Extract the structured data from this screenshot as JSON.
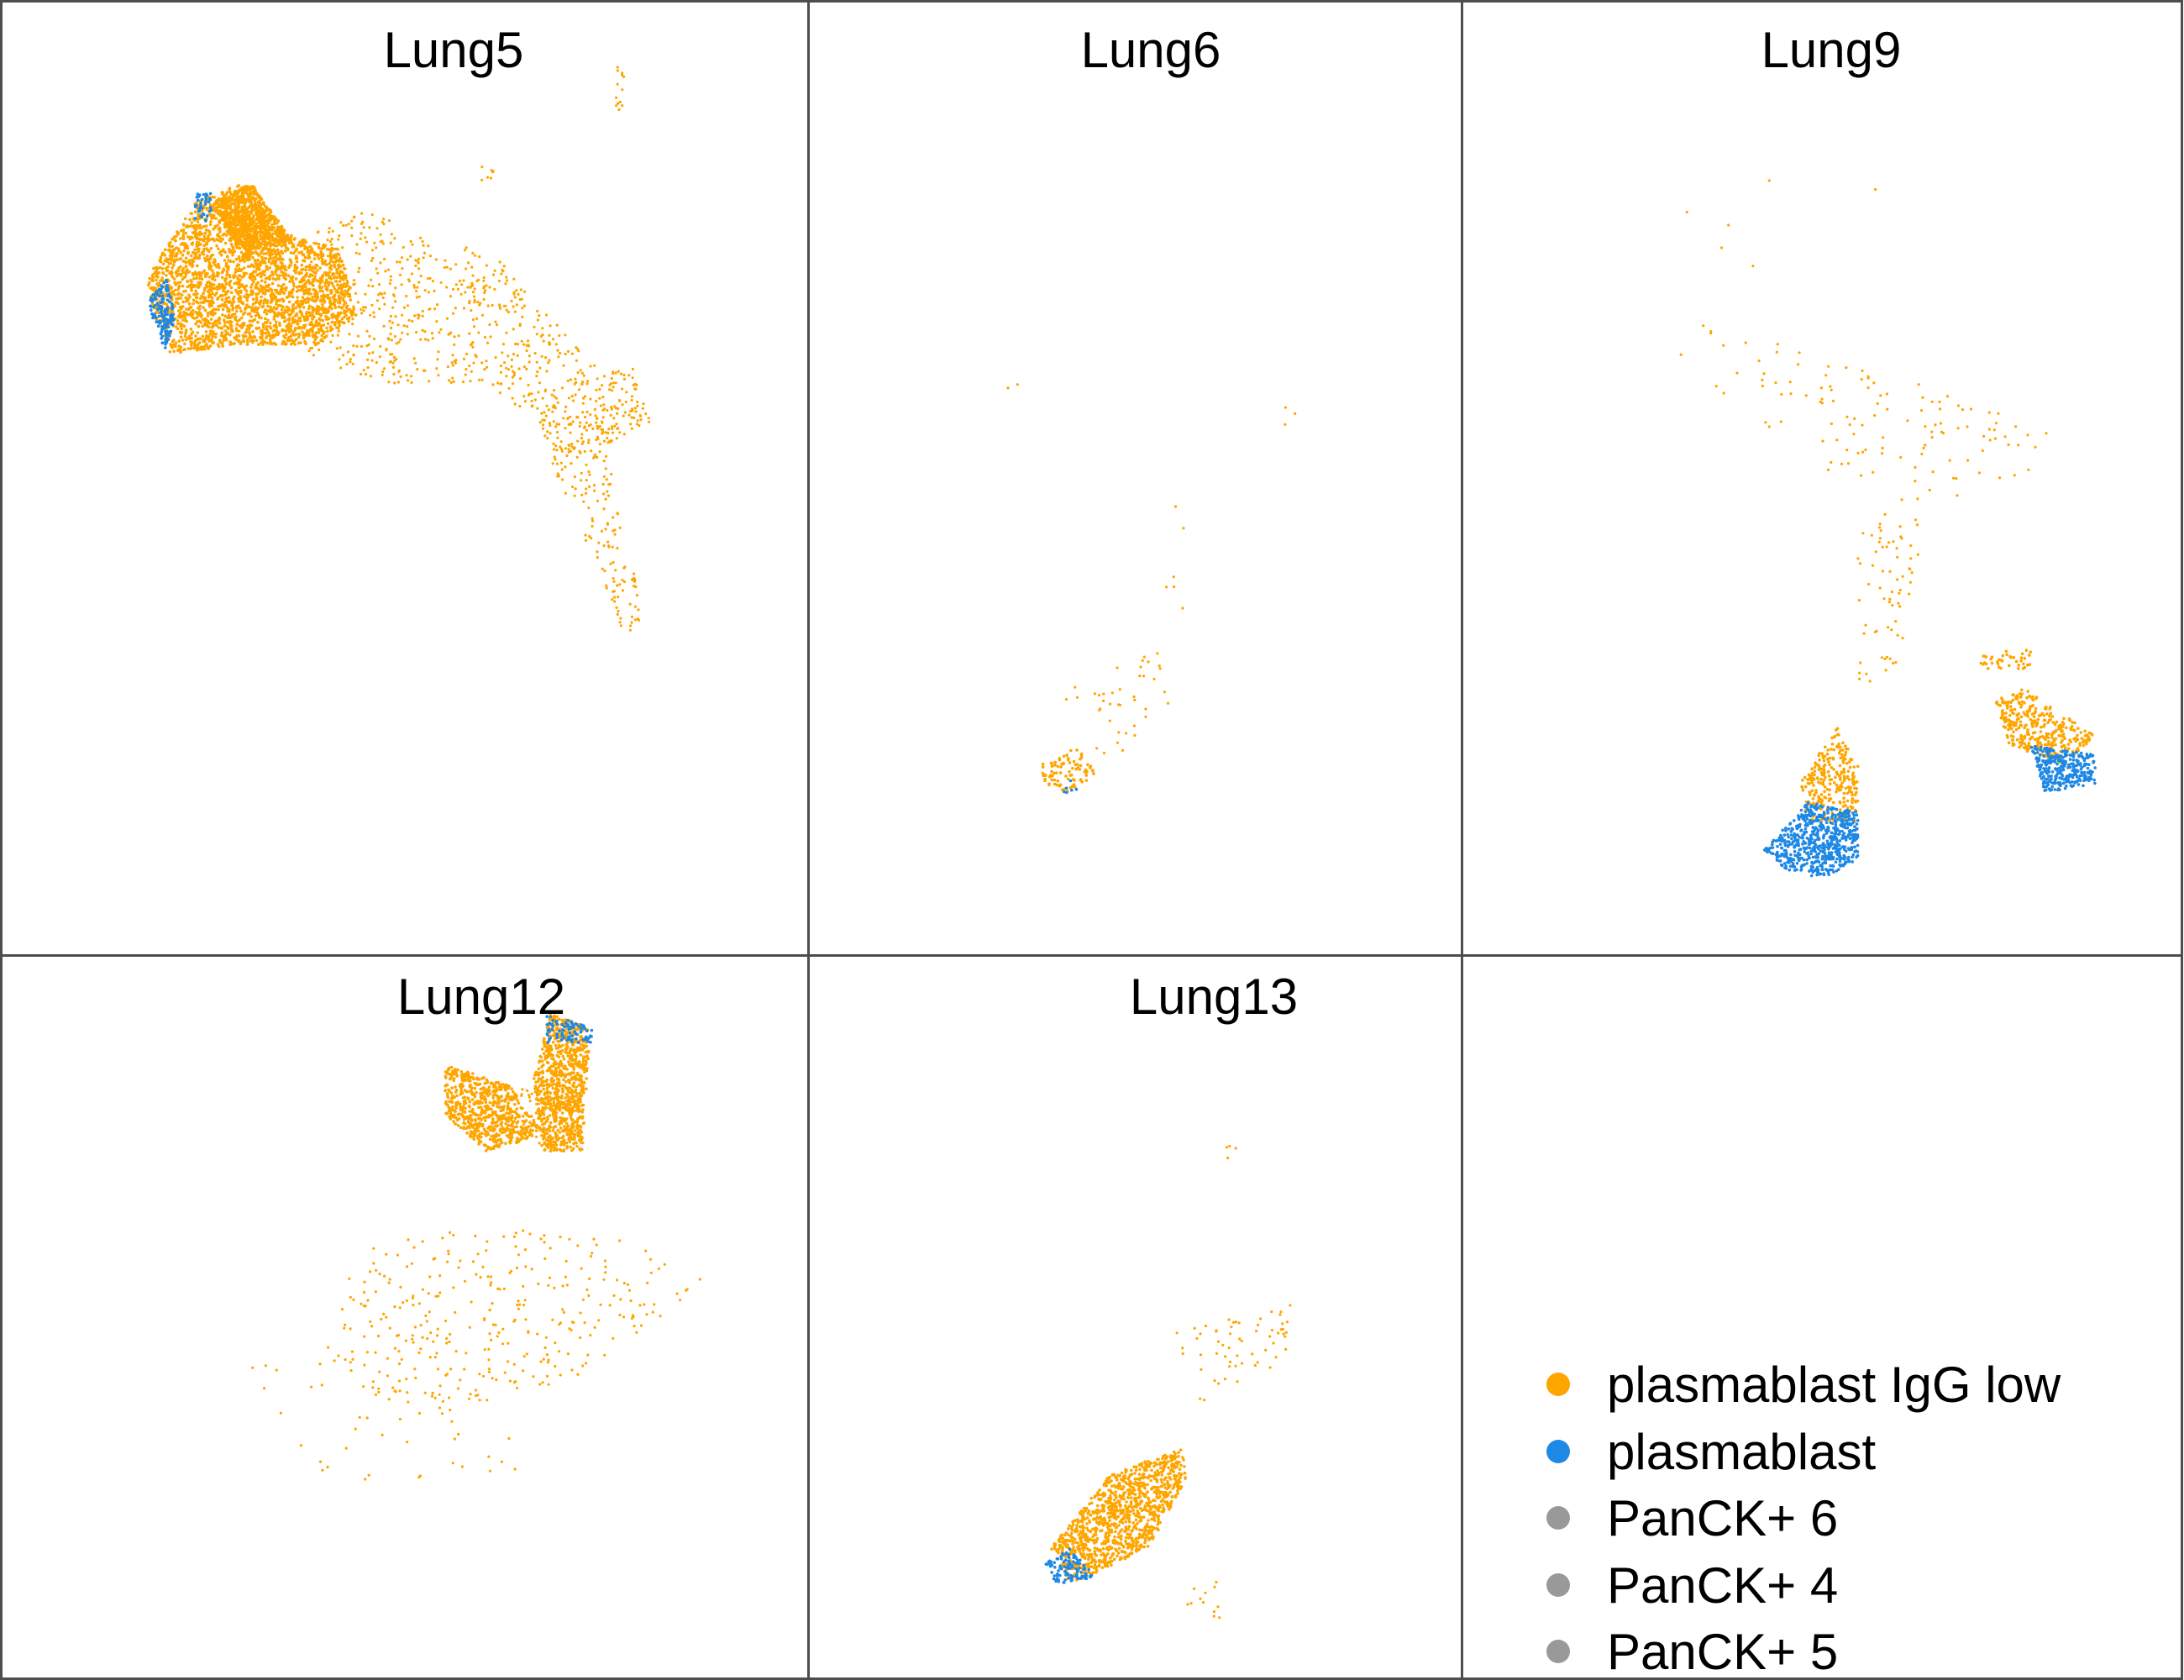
{
  "chart_data": {
    "type": "scatter",
    "facets": [
      "Lung5",
      "Lung6",
      "Lung9",
      "Lung12",
      "Lung13"
    ],
    "xlabel": "",
    "ylabel": "",
    "legend": {
      "placement": "bottom-right",
      "entries": [
        {
          "label": "plasmablast IgG low",
          "color": "#FFA500"
        },
        {
          "label": "plasmablast",
          "color": "#1E88E5"
        },
        {
          "label": "PanCK+ 6",
          "color": "#999999"
        },
        {
          "label": "PanCK+ 4",
          "color": "#999999"
        },
        {
          "label": "PanCK+ 5",
          "color": "#999999"
        }
      ]
    },
    "panels": [
      {
        "name": "Lung5",
        "clusters": [
          {
            "series": "plasmablast IgG low",
            "kind": "dense",
            "n": 2600,
            "poly": [
              [
                0.18,
                0.29
              ],
              [
                0.24,
                0.21
              ],
              [
                0.3,
                0.19
              ],
              [
                0.34,
                0.24
              ],
              [
                0.42,
                0.26
              ],
              [
                0.44,
                0.33
              ],
              [
                0.39,
                0.36
              ],
              [
                0.3,
                0.36
              ],
              [
                0.21,
                0.37
              ],
              [
                0.19,
                0.33
              ]
            ]
          },
          {
            "series": "plasmablast IgG low",
            "kind": "dense",
            "n": 700,
            "poly": [
              [
                0.26,
                0.21
              ],
              [
                0.31,
                0.19
              ],
              [
                0.36,
                0.25
              ],
              [
                0.3,
                0.27
              ]
            ]
          },
          {
            "series": "plasmablast IgG low",
            "kind": "sparse",
            "n": 700,
            "poly": [
              [
                0.36,
                0.25
              ],
              [
                0.45,
                0.22
              ],
              [
                0.62,
                0.27
              ],
              [
                0.68,
                0.33
              ],
              [
                0.8,
                0.43
              ],
              [
                0.71,
                0.48
              ],
              [
                0.6,
                0.4
              ],
              [
                0.45,
                0.4
              ],
              [
                0.38,
                0.37
              ]
            ]
          },
          {
            "series": "plasmablast IgG low",
            "kind": "sparse",
            "n": 170,
            "poly": [
              [
                0.66,
                0.44
              ],
              [
                0.74,
                0.43
              ],
              [
                0.8,
                0.66
              ],
              [
                0.77,
                0.66
              ]
            ]
          },
          {
            "series": "plasmablast IgG low",
            "kind": "sparse",
            "n": 80,
            "poly": [
              [
                0.72,
                0.4
              ],
              [
                0.78,
                0.38
              ],
              [
                0.81,
                0.44
              ],
              [
                0.74,
                0.47
              ]
            ]
          },
          {
            "series": "plasmablast IgG low",
            "kind": "sparse",
            "n": 14,
            "poly": [
              [
                0.757,
                0.065
              ],
              [
                0.775,
                0.065
              ],
              [
                0.78,
                0.115
              ],
              [
                0.76,
                0.115
              ]
            ]
          },
          {
            "series": "plasmablast IgG low",
            "kind": "sparse",
            "n": 8,
            "poly": [
              [
                0.58,
                0.17
              ],
              [
                0.61,
                0.17
              ],
              [
                0.61,
                0.19
              ],
              [
                0.58,
                0.19
              ]
            ]
          },
          {
            "series": "plasmablast",
            "kind": "dense",
            "n": 160,
            "poly": [
              [
                0.18,
                0.315
              ],
              [
                0.205,
                0.29
              ],
              [
                0.215,
                0.33
              ],
              [
                0.205,
                0.37
              ],
              [
                0.19,
                0.34
              ]
            ]
          },
          {
            "series": "plasmablast",
            "kind": "dense",
            "n": 40,
            "poly": [
              [
                0.24,
                0.2
              ],
              [
                0.26,
                0.2
              ],
              [
                0.26,
                0.23
              ],
              [
                0.24,
                0.23
              ]
            ]
          }
        ]
      },
      {
        "name": "Lung6",
        "clusters": [
          {
            "series": "plasmablast IgG low",
            "kind": "dense",
            "n": 90,
            "poly": [
              [
                0.35,
                0.8
              ],
              [
                0.41,
                0.78
              ],
              [
                0.44,
                0.81
              ],
              [
                0.4,
                0.83
              ],
              [
                0.36,
                0.82
              ]
            ]
          },
          {
            "series": "plasmablast IgG low",
            "kind": "sparse",
            "n": 40,
            "poly": [
              [
                0.38,
                0.72
              ],
              [
                0.54,
                0.68
              ],
              [
                0.56,
                0.76
              ],
              [
                0.44,
                0.8
              ]
            ]
          },
          {
            "series": "plasmablast IgG low",
            "kind": "sparse",
            "n": 6,
            "poly": [
              [
                0.54,
                0.5
              ],
              [
                0.58,
                0.5
              ],
              [
                0.58,
                0.66
              ],
              [
                0.54,
                0.66
              ]
            ]
          },
          {
            "series": "plasmablast IgG low",
            "kind": "sparse",
            "n": 3,
            "poly": [
              [
                0.72,
                0.42
              ],
              [
                0.76,
                0.42
              ],
              [
                0.76,
                0.46
              ],
              [
                0.72,
                0.46
              ]
            ]
          },
          {
            "series": "plasmablast IgG low",
            "kind": "sparse",
            "n": 2,
            "poly": [
              [
                0.3,
                0.4
              ],
              [
                0.32,
                0.4
              ],
              [
                0.32,
                0.43
              ],
              [
                0.3,
                0.43
              ]
            ]
          },
          {
            "series": "plasmablast",
            "kind": "dense",
            "n": 6,
            "poly": [
              [
                0.39,
                0.815
              ],
              [
                0.41,
                0.815
              ],
              [
                0.41,
                0.83
              ],
              [
                0.39,
                0.83
              ]
            ]
          }
        ]
      },
      {
        "name": "Lung9",
        "clusters": [
          {
            "series": "plasmablast IgG low",
            "kind": "sparse",
            "n": 120,
            "poly": [
              [
                0.3,
                0.32
              ],
              [
                0.5,
                0.37
              ],
              [
                0.8,
                0.44
              ],
              [
                0.85,
                0.49
              ],
              [
                0.7,
                0.52
              ],
              [
                0.5,
                0.49
              ],
              [
                0.3,
                0.38
              ]
            ]
          },
          {
            "series": "plasmablast IgG low",
            "kind": "sparse",
            "n": 70,
            "poly": [
              [
                0.55,
                0.52
              ],
              [
                0.65,
                0.52
              ],
              [
                0.6,
                0.72
              ],
              [
                0.55,
                0.72
              ]
            ]
          },
          {
            "series": "plasmablast IgG low",
            "kind": "sparse",
            "n": 6,
            "poly": [
              [
                0.3,
                0.18
              ],
              [
                0.6,
                0.18
              ],
              [
                0.6,
                0.3
              ],
              [
                0.3,
                0.3
              ]
            ]
          },
          {
            "series": "plasmablast IgG low",
            "kind": "dense",
            "n": 280,
            "poly": [
              [
                0.47,
                0.82
              ],
              [
                0.52,
                0.76
              ],
              [
                0.55,
                0.8
              ],
              [
                0.55,
                0.86
              ],
              [
                0.48,
                0.86
              ]
            ]
          },
          {
            "series": "plasmablast IgG low",
            "kind": "dense",
            "n": 350,
            "poly": [
              [
                0.74,
                0.73
              ],
              [
                0.78,
                0.72
              ],
              [
                0.88,
                0.77
              ],
              [
                0.84,
                0.8
              ],
              [
                0.76,
                0.78
              ]
            ]
          },
          {
            "series": "plasmablast IgG low",
            "kind": "dense",
            "n": 40,
            "poly": [
              [
                0.72,
                0.68
              ],
              [
                0.79,
                0.68
              ],
              [
                0.79,
                0.7
              ],
              [
                0.72,
                0.7
              ]
            ]
          },
          {
            "series": "plasmablast",
            "kind": "dense",
            "n": 650,
            "poly": [
              [
                0.42,
                0.89
              ],
              [
                0.48,
                0.84
              ],
              [
                0.55,
                0.85
              ],
              [
                0.55,
                0.9
              ],
              [
                0.5,
                0.92
              ],
              [
                0.45,
                0.91
              ]
            ]
          },
          {
            "series": "plasmablast",
            "kind": "dense",
            "n": 320,
            "poly": [
              [
                0.79,
                0.78
              ],
              [
                0.88,
                0.79
              ],
              [
                0.88,
                0.82
              ],
              [
                0.81,
                0.83
              ]
            ]
          }
        ]
      },
      {
        "name": "Lung12",
        "clusters": [
          {
            "series": "plasmablast IgG low",
            "kind": "dense",
            "n": 650,
            "poly": [
              [
                0.55,
                0.15
              ],
              [
                0.63,
                0.18
              ],
              [
                0.67,
                0.24
              ],
              [
                0.64,
                0.26
              ],
              [
                0.6,
                0.27
              ],
              [
                0.55,
                0.22
              ]
            ]
          },
          {
            "series": "plasmablast IgG low",
            "kind": "dense",
            "n": 900,
            "poly": [
              [
                0.68,
                0.08
              ],
              [
                0.73,
                0.1
              ],
              [
                0.72,
                0.27
              ],
              [
                0.67,
                0.27
              ],
              [
                0.66,
                0.17
              ]
            ]
          },
          {
            "series": "plasmablast IgG low",
            "kind": "sparse",
            "n": 50,
            "poly": [
              [
                0.62,
                0.18
              ],
              [
                0.67,
                0.18
              ],
              [
                0.67,
                0.26
              ],
              [
                0.62,
                0.26
              ]
            ]
          },
          {
            "series": "plasmablast IgG low",
            "kind": "sparse",
            "n": 330,
            "poly": [
              [
                0.45,
                0.38
              ],
              [
                0.75,
                0.38
              ],
              [
                0.88,
                0.45
              ],
              [
                0.72,
                0.58
              ],
              [
                0.5,
                0.65
              ],
              [
                0.4,
                0.55
              ]
            ]
          },
          {
            "series": "plasmablast IgG low",
            "kind": "sparse",
            "n": 40,
            "poly": [
              [
                0.3,
                0.55
              ],
              [
                0.5,
                0.55
              ],
              [
                0.7,
                0.7
              ],
              [
                0.4,
                0.75
              ]
            ]
          },
          {
            "series": "plasmablast",
            "kind": "dense",
            "n": 90,
            "poly": [
              [
                0.675,
                0.08
              ],
              [
                0.735,
                0.1
              ],
              [
                0.74,
                0.12
              ],
              [
                0.675,
                0.12
              ]
            ]
          }
        ]
      },
      {
        "name": "Lung13",
        "clusters": [
          {
            "series": "plasmablast IgG low",
            "kind": "dense",
            "n": 1100,
            "poly": [
              [
                0.37,
                0.82
              ],
              [
                0.46,
                0.72
              ],
              [
                0.57,
                0.68
              ],
              [
                0.58,
                0.72
              ],
              [
                0.52,
                0.82
              ],
              [
                0.4,
                0.87
              ]
            ]
          },
          {
            "series": "plasmablast IgG low",
            "kind": "sparse",
            "n": 60,
            "poly": [
              [
                0.56,
                0.52
              ],
              [
                0.74,
                0.48
              ],
              [
                0.74,
                0.56
              ],
              [
                0.6,
                0.62
              ]
            ]
          },
          {
            "series": "plasmablast IgG low",
            "kind": "sparse",
            "n": 12,
            "poly": [
              [
                0.58,
                0.86
              ],
              [
                0.63,
                0.86
              ],
              [
                0.63,
                0.92
              ],
              [
                0.58,
                0.92
              ]
            ]
          },
          {
            "series": "plasmablast IgG low",
            "kind": "sparse",
            "n": 4,
            "poly": [
              [
                0.64,
                0.26
              ],
              [
                0.66,
                0.26
              ],
              [
                0.66,
                0.28
              ],
              [
                0.64,
                0.28
              ]
            ]
          },
          {
            "series": "plasmablast",
            "kind": "dense",
            "n": 110,
            "poly": [
              [
                0.36,
                0.84
              ],
              [
                0.4,
                0.82
              ],
              [
                0.44,
                0.86
              ],
              [
                0.38,
                0.87
              ]
            ]
          }
        ]
      }
    ]
  }
}
